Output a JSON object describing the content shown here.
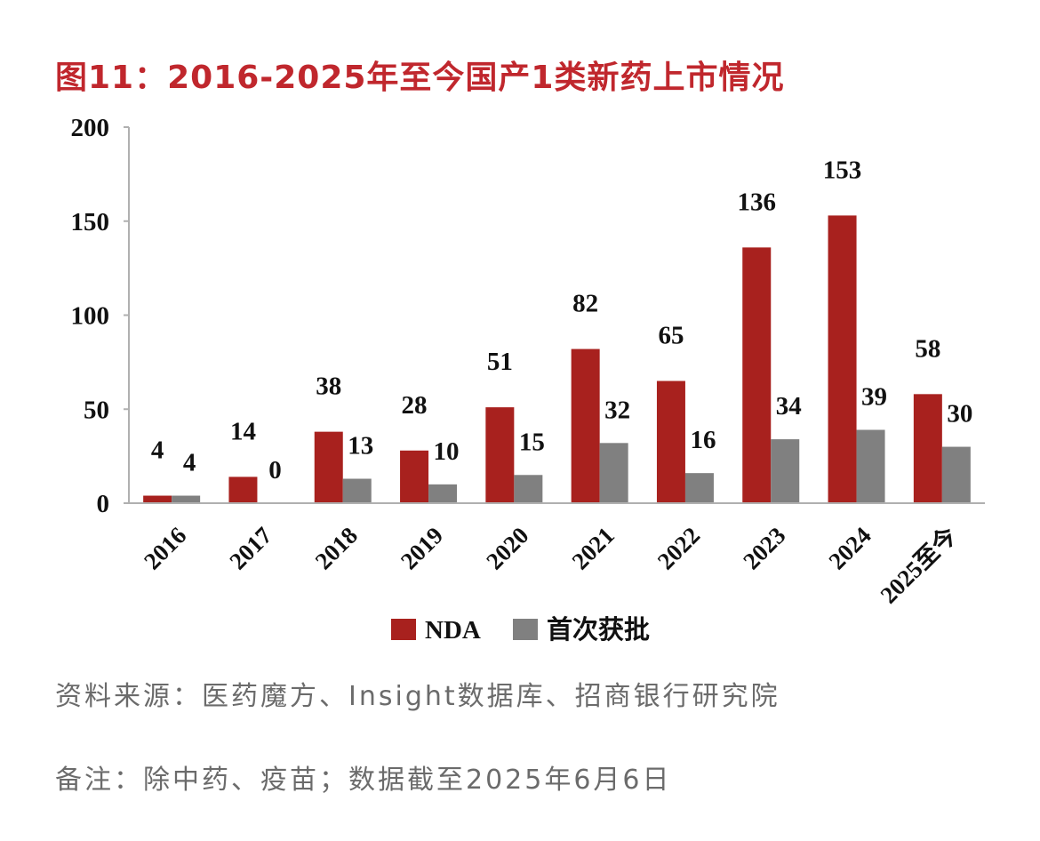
{
  "title": "图11：2016-2025年至今国产1类新药上市情况",
  "source": "资料来源：医药魔方、Insight数据库、招商银行研究院",
  "remark": "备注：除中药、疫苗；数据截至2025年6月6日",
  "colors": {
    "title": "#c0272d",
    "nda": "#a8211e",
    "first": "#808080",
    "note": "#6b6b6b"
  },
  "chart_data": {
    "type": "bar",
    "categories": [
      "2016",
      "2017",
      "2018",
      "2019",
      "2020",
      "2021",
      "2022",
      "2023",
      "2024",
      "2025至今"
    ],
    "series": [
      {
        "name": "NDA",
        "values": [
          4,
          14,
          38,
          28,
          51,
          82,
          65,
          136,
          153,
          58
        ]
      },
      {
        "name": "首次获批",
        "values": [
          4,
          0,
          13,
          10,
          15,
          32,
          16,
          34,
          39,
          30
        ]
      }
    ],
    "ylim": [
      0,
      200
    ],
    "yticks": [
      0,
      50,
      100,
      150,
      200
    ],
    "legend": "bottom",
    "grid": false
  }
}
